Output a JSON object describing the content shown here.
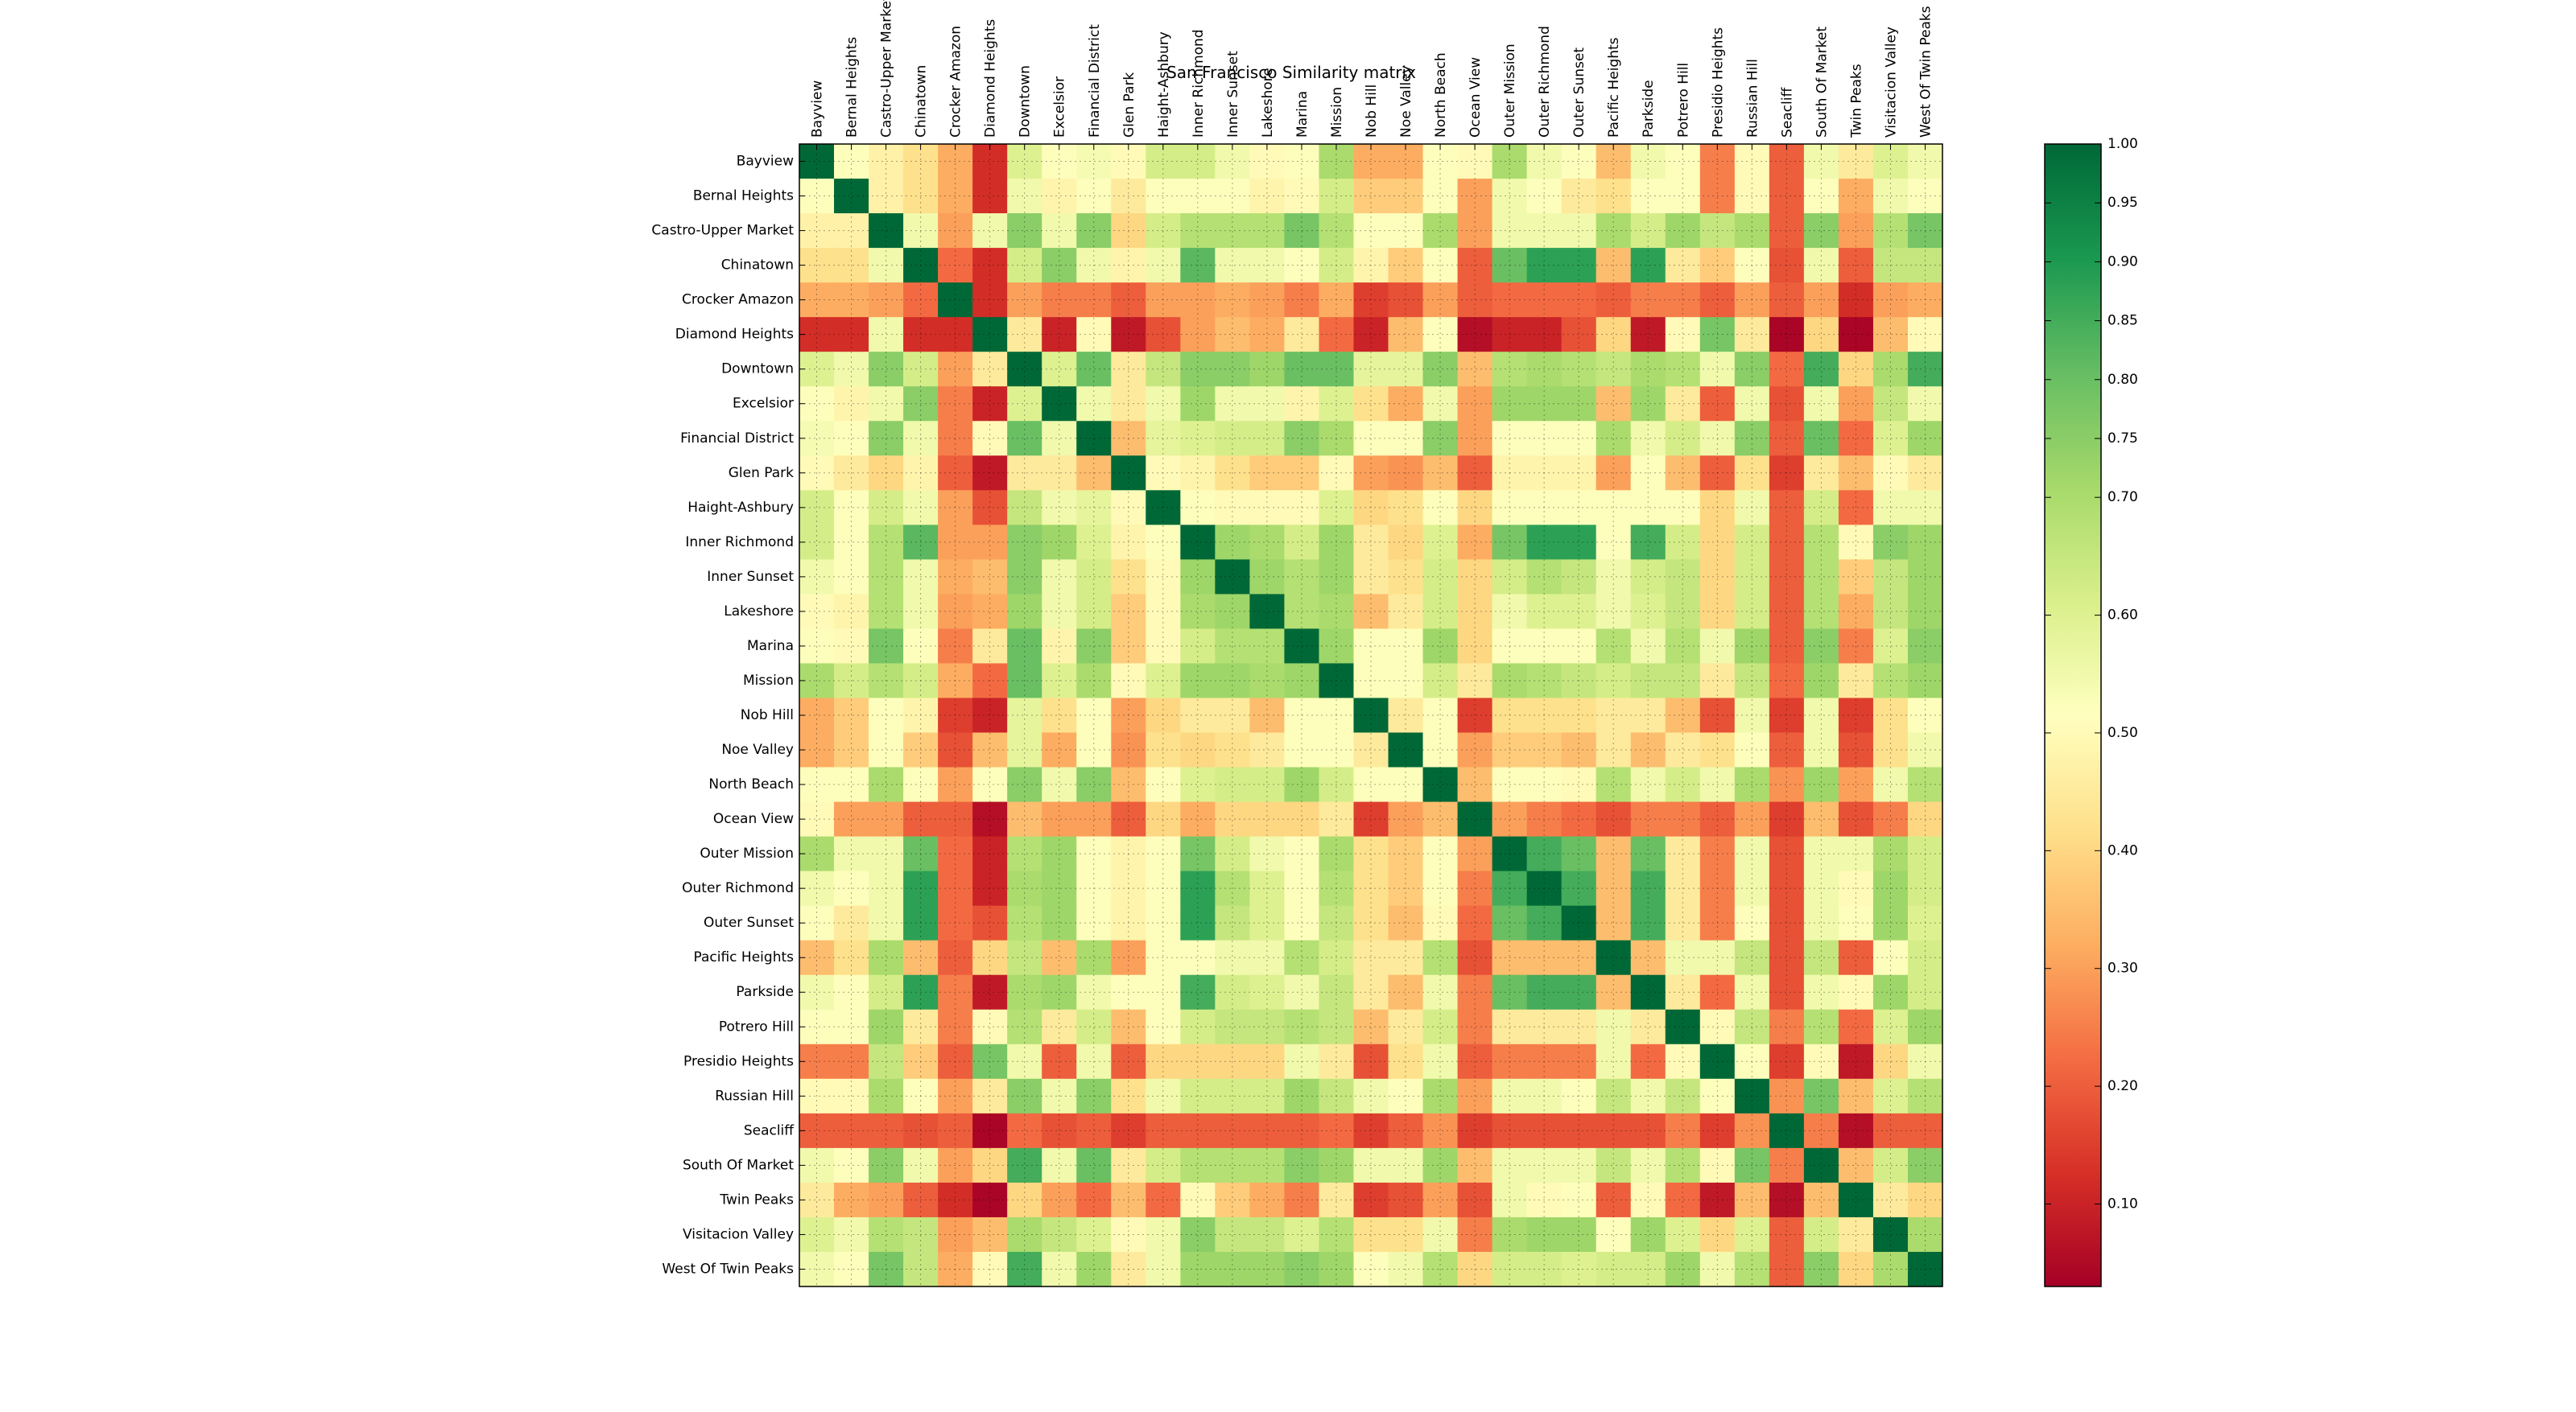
{
  "chart_data": {
    "type": "heatmap",
    "title": "San Francisco Similarity matrix",
    "xlabel": "",
    "ylabel": "",
    "grid": true,
    "colormap": "RdYlGn",
    "colormap_stops": [
      "#a50026",
      "#d73027",
      "#f46d43",
      "#fdae61",
      "#fee08b",
      "#ffffbf",
      "#d9ef8b",
      "#a6d96a",
      "#66bd63",
      "#1a9850",
      "#006837"
    ],
    "value_range": [
      0.03,
      1.0
    ],
    "colorbar_ticks": [
      "0.10",
      "0.20",
      "0.30",
      "0.40",
      "0.50",
      "0.60",
      "0.70",
      "0.75",
      "0.80",
      "0.85",
      "0.90",
      "0.95",
      "1.00"
    ],
    "colorbar_tick_values": [
      0.1,
      0.2,
      0.3,
      0.4,
      0.5,
      0.6,
      0.7,
      0.75,
      0.8,
      0.85,
      0.9,
      0.95,
      1.0
    ],
    "labels": [
      "Bayview",
      "Bernal Heights",
      "Castro-Upper Market",
      "Chinatown",
      "Crocker Amazon",
      "Diamond Heights",
      "Downtown",
      "Excelsior",
      "Financial District",
      "Glen Park",
      "Haight-Ashbury",
      "Inner Richmond",
      "Inner Sunset",
      "Lakeshore",
      "Marina",
      "Mission",
      "Nob Hill",
      "Noe Valley",
      "North Beach",
      "Ocean View",
      "Outer Mission",
      "Outer Richmond",
      "Outer Sunset",
      "Pacific Heights",
      "Parkside",
      "Potrero Hill",
      "Presidio Heights",
      "Russian Hill",
      "Seacliff",
      "South Of Market",
      "Twin Peaks",
      "Visitacion Valley",
      "West Of Twin Peaks"
    ],
    "values": [
      [
        1.0,
        0.52,
        0.47,
        0.42,
        0.32,
        0.12,
        0.6,
        0.52,
        0.54,
        0.5,
        0.62,
        0.62,
        0.55,
        0.5,
        0.52,
        0.7,
        0.32,
        0.32,
        0.52,
        0.5,
        0.7,
        0.55,
        0.52,
        0.35,
        0.55,
        0.52,
        0.25,
        0.5,
        0.2,
        0.55,
        0.45,
        0.6,
        0.55
      ],
      [
        0.52,
        1.0,
        0.47,
        0.42,
        0.32,
        0.12,
        0.55,
        0.48,
        0.52,
        0.45,
        0.52,
        0.52,
        0.52,
        0.48,
        0.5,
        0.62,
        0.38,
        0.38,
        0.52,
        0.3,
        0.55,
        0.52,
        0.45,
        0.42,
        0.52,
        0.52,
        0.25,
        0.5,
        0.2,
        0.52,
        0.32,
        0.55,
        0.52
      ],
      [
        0.47,
        0.47,
        1.0,
        0.55,
        0.3,
        0.55,
        0.75,
        0.55,
        0.75,
        0.4,
        0.62,
        0.68,
        0.68,
        0.68,
        0.78,
        0.68,
        0.52,
        0.52,
        0.7,
        0.3,
        0.55,
        0.55,
        0.55,
        0.7,
        0.62,
        0.72,
        0.65,
        0.7,
        0.2,
        0.75,
        0.3,
        0.68,
        0.78
      ],
      [
        0.42,
        0.42,
        0.55,
        1.0,
        0.22,
        0.12,
        0.62,
        0.75,
        0.55,
        0.48,
        0.55,
        0.82,
        0.55,
        0.55,
        0.52,
        0.62,
        0.48,
        0.38,
        0.52,
        0.2,
        0.8,
        0.88,
        0.88,
        0.35,
        0.88,
        0.45,
        0.38,
        0.52,
        0.18,
        0.55,
        0.2,
        0.65,
        0.65
      ],
      [
        0.32,
        0.32,
        0.3,
        0.22,
        1.0,
        0.12,
        0.3,
        0.25,
        0.25,
        0.2,
        0.3,
        0.3,
        0.32,
        0.3,
        0.25,
        0.32,
        0.15,
        0.18,
        0.3,
        0.2,
        0.22,
        0.22,
        0.22,
        0.2,
        0.25,
        0.25,
        0.2,
        0.3,
        0.2,
        0.3,
        0.12,
        0.3,
        0.32
      ],
      [
        0.12,
        0.12,
        0.55,
        0.12,
        0.12,
        1.0,
        0.45,
        0.1,
        0.5,
        0.08,
        0.18,
        0.3,
        0.35,
        0.32,
        0.45,
        0.22,
        0.1,
        0.35,
        0.52,
        0.06,
        0.1,
        0.1,
        0.18,
        0.4,
        0.08,
        0.5,
        0.78,
        0.45,
        0.04,
        0.4,
        0.04,
        0.35,
        0.5
      ],
      [
        0.6,
        0.55,
        0.75,
        0.62,
        0.3,
        0.45,
        1.0,
        0.6,
        0.8,
        0.45,
        0.65,
        0.75,
        0.75,
        0.72,
        0.8,
        0.8,
        0.58,
        0.58,
        0.75,
        0.35,
        0.68,
        0.7,
        0.68,
        0.65,
        0.7,
        0.68,
        0.55,
        0.75,
        0.22,
        0.85,
        0.4,
        0.7,
        0.85
      ],
      [
        0.52,
        0.48,
        0.55,
        0.75,
        0.25,
        0.1,
        0.6,
        1.0,
        0.55,
        0.45,
        0.55,
        0.72,
        0.55,
        0.55,
        0.48,
        0.6,
        0.42,
        0.32,
        0.55,
        0.3,
        0.72,
        0.72,
        0.72,
        0.35,
        0.72,
        0.45,
        0.2,
        0.55,
        0.18,
        0.55,
        0.3,
        0.65,
        0.55
      ],
      [
        0.54,
        0.52,
        0.75,
        0.55,
        0.25,
        0.5,
        0.8,
        0.55,
        1.0,
        0.35,
        0.58,
        0.6,
        0.62,
        0.62,
        0.75,
        0.7,
        0.52,
        0.52,
        0.75,
        0.3,
        0.52,
        0.52,
        0.52,
        0.7,
        0.55,
        0.62,
        0.55,
        0.75,
        0.2,
        0.8,
        0.22,
        0.6,
        0.72
      ],
      [
        0.5,
        0.45,
        0.4,
        0.48,
        0.2,
        0.08,
        0.45,
        0.45,
        0.35,
        1.0,
        0.5,
        0.48,
        0.42,
        0.38,
        0.38,
        0.5,
        0.3,
        0.28,
        0.35,
        0.2,
        0.48,
        0.48,
        0.48,
        0.3,
        0.52,
        0.35,
        0.2,
        0.42,
        0.15,
        0.45,
        0.35,
        0.5,
        0.45
      ],
      [
        0.62,
        0.52,
        0.62,
        0.55,
        0.3,
        0.18,
        0.65,
        0.55,
        0.58,
        0.5,
        1.0,
        0.52,
        0.5,
        0.5,
        0.5,
        0.6,
        0.4,
        0.42,
        0.52,
        0.4,
        0.52,
        0.52,
        0.52,
        0.52,
        0.52,
        0.52,
        0.4,
        0.55,
        0.2,
        0.62,
        0.22,
        0.55,
        0.55
      ],
      [
        0.62,
        0.52,
        0.68,
        0.82,
        0.3,
        0.3,
        0.75,
        0.72,
        0.6,
        0.48,
        0.52,
        1.0,
        0.72,
        0.7,
        0.62,
        0.72,
        0.45,
        0.4,
        0.6,
        0.32,
        0.78,
        0.88,
        0.88,
        0.52,
        0.85,
        0.62,
        0.4,
        0.62,
        0.2,
        0.68,
        0.5,
        0.75,
        0.72
      ],
      [
        0.55,
        0.52,
        0.68,
        0.55,
        0.32,
        0.35,
        0.75,
        0.55,
        0.62,
        0.42,
        0.5,
        0.72,
        1.0,
        0.72,
        0.68,
        0.72,
        0.45,
        0.42,
        0.62,
        0.4,
        0.62,
        0.68,
        0.65,
        0.55,
        0.62,
        0.65,
        0.4,
        0.62,
        0.2,
        0.68,
        0.38,
        0.65,
        0.72
      ],
      [
        0.5,
        0.48,
        0.68,
        0.55,
        0.3,
        0.32,
        0.72,
        0.55,
        0.62,
        0.38,
        0.5,
        0.7,
        0.72,
        1.0,
        0.68,
        0.7,
        0.35,
        0.45,
        0.62,
        0.4,
        0.55,
        0.6,
        0.6,
        0.55,
        0.6,
        0.65,
        0.4,
        0.62,
        0.2,
        0.68,
        0.32,
        0.65,
        0.72
      ],
      [
        0.52,
        0.5,
        0.78,
        0.52,
        0.25,
        0.45,
        0.8,
        0.48,
        0.75,
        0.38,
        0.5,
        0.62,
        0.68,
        0.68,
        1.0,
        0.72,
        0.52,
        0.52,
        0.72,
        0.4,
        0.52,
        0.52,
        0.52,
        0.68,
        0.55,
        0.68,
        0.55,
        0.72,
        0.2,
        0.75,
        0.25,
        0.6,
        0.75
      ],
      [
        0.7,
        0.62,
        0.68,
        0.62,
        0.32,
        0.22,
        0.8,
        0.6,
        0.7,
        0.5,
        0.6,
        0.72,
        0.72,
        0.7,
        0.72,
        1.0,
        0.52,
        0.52,
        0.62,
        0.45,
        0.7,
        0.68,
        0.65,
        0.62,
        0.65,
        0.65,
        0.45,
        0.65,
        0.22,
        0.72,
        0.45,
        0.68,
        0.72
      ],
      [
        0.32,
        0.38,
        0.52,
        0.48,
        0.15,
        0.1,
        0.58,
        0.42,
        0.52,
        0.3,
        0.4,
        0.45,
        0.45,
        0.35,
        0.52,
        0.52,
        1.0,
        0.45,
        0.52,
        0.15,
        0.42,
        0.42,
        0.42,
        0.45,
        0.45,
        0.35,
        0.18,
        0.55,
        0.15,
        0.55,
        0.15,
        0.42,
        0.52
      ],
      [
        0.32,
        0.38,
        0.52,
        0.38,
        0.18,
        0.35,
        0.58,
        0.32,
        0.52,
        0.28,
        0.42,
        0.4,
        0.42,
        0.45,
        0.52,
        0.52,
        0.45,
        1.0,
        0.52,
        0.3,
        0.38,
        0.38,
        0.35,
        0.45,
        0.35,
        0.45,
        0.42,
        0.52,
        0.2,
        0.55,
        0.18,
        0.42,
        0.55
      ],
      [
        0.52,
        0.52,
        0.7,
        0.52,
        0.3,
        0.52,
        0.75,
        0.55,
        0.75,
        0.35,
        0.52,
        0.6,
        0.62,
        0.62,
        0.72,
        0.62,
        0.52,
        0.52,
        1.0,
        0.35,
        0.52,
        0.52,
        0.5,
        0.68,
        0.55,
        0.62,
        0.55,
        0.7,
        0.28,
        0.72,
        0.3,
        0.55,
        0.68
      ],
      [
        0.5,
        0.3,
        0.3,
        0.2,
        0.2,
        0.06,
        0.35,
        0.3,
        0.3,
        0.2,
        0.4,
        0.32,
        0.4,
        0.4,
        0.4,
        0.45,
        0.15,
        0.3,
        0.35,
        1.0,
        0.3,
        0.25,
        0.22,
        0.18,
        0.25,
        0.25,
        0.2,
        0.3,
        0.15,
        0.35,
        0.18,
        0.25,
        0.4
      ],
      [
        0.7,
        0.55,
        0.55,
        0.8,
        0.22,
        0.1,
        0.68,
        0.72,
        0.52,
        0.48,
        0.52,
        0.78,
        0.62,
        0.55,
        0.52,
        0.7,
        0.42,
        0.38,
        0.52,
        0.3,
        1.0,
        0.85,
        0.8,
        0.35,
        0.8,
        0.45,
        0.25,
        0.55,
        0.18,
        0.55,
        0.55,
        0.7,
        0.62
      ],
      [
        0.55,
        0.52,
        0.55,
        0.88,
        0.22,
        0.1,
        0.7,
        0.72,
        0.52,
        0.48,
        0.52,
        0.88,
        0.68,
        0.6,
        0.52,
        0.68,
        0.42,
        0.38,
        0.52,
        0.25,
        0.85,
        1.0,
        0.85,
        0.35,
        0.85,
        0.45,
        0.25,
        0.55,
        0.18,
        0.55,
        0.5,
        0.72,
        0.62
      ],
      [
        0.52,
        0.45,
        0.55,
        0.88,
        0.22,
        0.18,
        0.68,
        0.72,
        0.52,
        0.48,
        0.52,
        0.88,
        0.65,
        0.6,
        0.52,
        0.65,
        0.42,
        0.35,
        0.5,
        0.22,
        0.8,
        0.85,
        1.0,
        0.35,
        0.85,
        0.45,
        0.25,
        0.52,
        0.18,
        0.55,
        0.52,
        0.72,
        0.6
      ],
      [
        0.35,
        0.42,
        0.7,
        0.35,
        0.2,
        0.4,
        0.65,
        0.35,
        0.7,
        0.3,
        0.52,
        0.52,
        0.55,
        0.55,
        0.68,
        0.62,
        0.45,
        0.45,
        0.68,
        0.18,
        0.35,
        0.35,
        0.35,
        1.0,
        0.35,
        0.55,
        0.55,
        0.65,
        0.18,
        0.65,
        0.2,
        0.52,
        0.62
      ],
      [
        0.55,
        0.52,
        0.62,
        0.88,
        0.25,
        0.08,
        0.7,
        0.72,
        0.55,
        0.52,
        0.52,
        0.85,
        0.62,
        0.6,
        0.55,
        0.65,
        0.45,
        0.35,
        0.55,
        0.25,
        0.8,
        0.85,
        0.85,
        0.35,
        1.0,
        0.45,
        0.22,
        0.55,
        0.18,
        0.55,
        0.5,
        0.72,
        0.62
      ],
      [
        0.52,
        0.52,
        0.72,
        0.45,
        0.25,
        0.5,
        0.68,
        0.45,
        0.62,
        0.35,
        0.52,
        0.62,
        0.65,
        0.65,
        0.68,
        0.65,
        0.35,
        0.45,
        0.62,
        0.25,
        0.45,
        0.45,
        0.45,
        0.55,
        0.45,
        1.0,
        0.5,
        0.65,
        0.25,
        0.68,
        0.22,
        0.6,
        0.72
      ],
      [
        0.25,
        0.25,
        0.65,
        0.38,
        0.2,
        0.78,
        0.55,
        0.2,
        0.55,
        0.2,
        0.4,
        0.4,
        0.4,
        0.4,
        0.55,
        0.45,
        0.18,
        0.42,
        0.55,
        0.2,
        0.25,
        0.25,
        0.25,
        0.55,
        0.22,
        0.5,
        1.0,
        0.52,
        0.15,
        0.5,
        0.08,
        0.4,
        0.55
      ],
      [
        0.5,
        0.5,
        0.7,
        0.52,
        0.3,
        0.45,
        0.75,
        0.55,
        0.75,
        0.42,
        0.55,
        0.62,
        0.62,
        0.62,
        0.72,
        0.65,
        0.55,
        0.52,
        0.7,
        0.3,
        0.55,
        0.55,
        0.52,
        0.65,
        0.55,
        0.65,
        0.52,
        1.0,
        0.28,
        0.78,
        0.35,
        0.6,
        0.68
      ],
      [
        0.2,
        0.2,
        0.2,
        0.18,
        0.2,
        0.04,
        0.22,
        0.18,
        0.2,
        0.15,
        0.2,
        0.2,
        0.2,
        0.2,
        0.2,
        0.22,
        0.15,
        0.2,
        0.28,
        0.15,
        0.18,
        0.18,
        0.18,
        0.18,
        0.18,
        0.25,
        0.15,
        0.28,
        1.0,
        0.25,
        0.06,
        0.2,
        0.2
      ],
      [
        0.55,
        0.52,
        0.75,
        0.55,
        0.3,
        0.4,
        0.85,
        0.55,
        0.8,
        0.45,
        0.62,
        0.68,
        0.68,
        0.68,
        0.75,
        0.72,
        0.55,
        0.55,
        0.72,
        0.35,
        0.55,
        0.55,
        0.55,
        0.65,
        0.55,
        0.68,
        0.5,
        0.78,
        0.25,
        1.0,
        0.35,
        0.62,
        0.75
      ],
      [
        0.45,
        0.32,
        0.3,
        0.2,
        0.12,
        0.04,
        0.4,
        0.3,
        0.22,
        0.35,
        0.22,
        0.5,
        0.38,
        0.32,
        0.25,
        0.45,
        0.15,
        0.18,
        0.3,
        0.18,
        0.55,
        0.5,
        0.52,
        0.2,
        0.5,
        0.22,
        0.08,
        0.35,
        0.06,
        0.35,
        1.0,
        0.45,
        0.4
      ],
      [
        0.6,
        0.55,
        0.68,
        0.65,
        0.3,
        0.35,
        0.7,
        0.65,
        0.6,
        0.5,
        0.55,
        0.75,
        0.65,
        0.65,
        0.6,
        0.68,
        0.42,
        0.42,
        0.55,
        0.25,
        0.7,
        0.72,
        0.72,
        0.52,
        0.72,
        0.6,
        0.4,
        0.6,
        0.2,
        0.62,
        0.45,
        1.0,
        0.7
      ],
      [
        0.55,
        0.52,
        0.78,
        0.65,
        0.32,
        0.5,
        0.85,
        0.55,
        0.72,
        0.45,
        0.55,
        0.72,
        0.72,
        0.72,
        0.75,
        0.72,
        0.52,
        0.55,
        0.68,
        0.4,
        0.62,
        0.62,
        0.6,
        0.62,
        0.62,
        0.72,
        0.55,
        0.68,
        0.2,
        0.75,
        0.4,
        0.7,
        1.0
      ]
    ]
  }
}
